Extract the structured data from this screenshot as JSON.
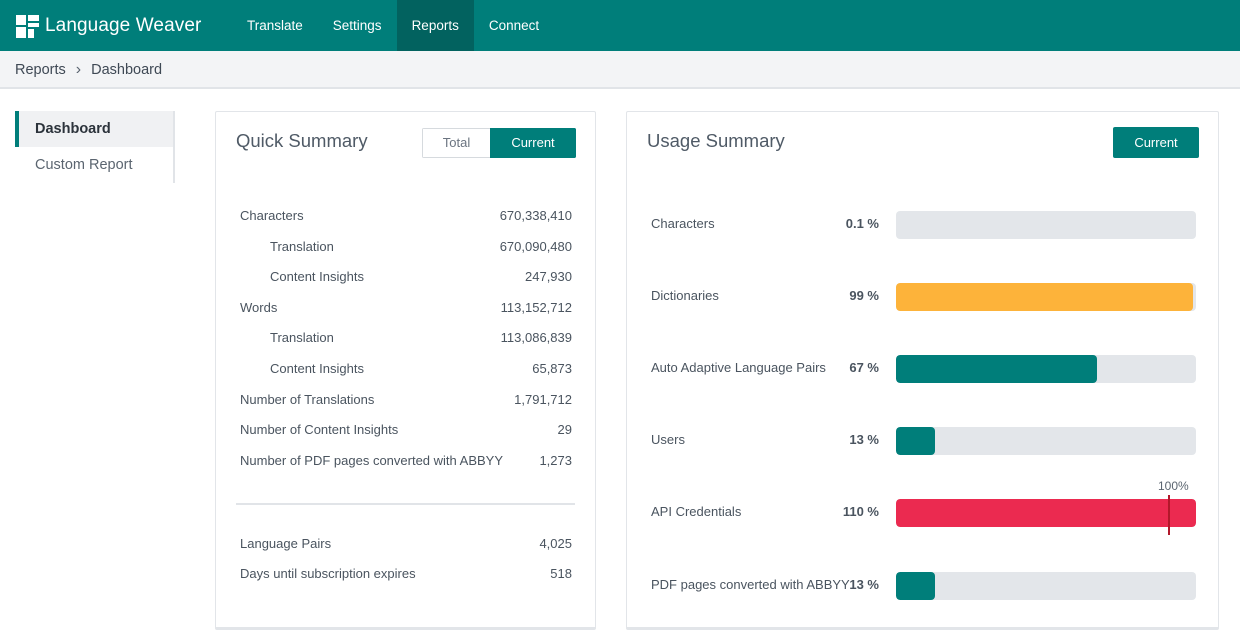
{
  "app": {
    "name": "Language Weaver"
  },
  "nav": [
    {
      "label": "Translate",
      "active": false
    },
    {
      "label": "Settings",
      "active": false
    },
    {
      "label": "Reports",
      "active": true
    },
    {
      "label": "Connect",
      "active": false
    }
  ],
  "breadcrumb": {
    "items": [
      "Reports",
      "Dashboard"
    ],
    "separator": "›"
  },
  "sidebar": [
    {
      "label": "Dashboard",
      "active": true
    },
    {
      "label": "Custom Report",
      "active": false
    }
  ],
  "quick_summary": {
    "title": "Quick Summary",
    "toggle": {
      "total": "Total",
      "current": "Current",
      "selected": "current"
    },
    "rows": [
      {
        "label": "Characters",
        "value": "670,338,410",
        "sub": false
      },
      {
        "label": "Translation",
        "value": "670,090,480",
        "sub": true
      },
      {
        "label": "Content Insights",
        "value": "247,930",
        "sub": true
      },
      {
        "label": "Words",
        "value": "113,152,712",
        "sub": false
      },
      {
        "label": "Translation",
        "value": "113,086,839",
        "sub": true
      },
      {
        "label": "Content Insights",
        "value": "65,873",
        "sub": true
      },
      {
        "label": "Number of Translations",
        "value": "1,791,712",
        "sub": false
      },
      {
        "label": "Number of Content Insights",
        "value": "29",
        "sub": false
      },
      {
        "label": "Number of PDF pages converted with ABBYY",
        "value": "1,273",
        "sub": false
      }
    ],
    "rows2": [
      {
        "label": "Language Pairs",
        "value": "4,025",
        "sub": false
      },
      {
        "label": "Days until subscription expires",
        "value": "518",
        "sub": false
      }
    ]
  },
  "usage_summary": {
    "title": "Usage Summary",
    "current_label": "Current",
    "marker_label": "100%",
    "rows": [
      {
        "label": "Characters",
        "pct_text": "0.1 %",
        "fraction": 0.001,
        "color": "#007e7a"
      },
      {
        "label": "Dictionaries",
        "pct_text": "99 %",
        "fraction": 0.99,
        "color": "#fdb33a"
      },
      {
        "label": "Auto Adaptive Language Pairs",
        "pct_text": "67 %",
        "fraction": 0.67,
        "color": "#007e7a"
      },
      {
        "label": "Users",
        "pct_text": "13 %",
        "fraction": 0.13,
        "color": "#007e7a"
      },
      {
        "label": "API Credentials",
        "pct_text": "110 %",
        "fraction": 1.1,
        "color": "#eb2a50",
        "over_limit": true
      },
      {
        "label": "PDF pages converted with ABBYY",
        "pct_text": "13 %",
        "fraction": 0.13,
        "color": "#007e7a"
      }
    ]
  }
}
